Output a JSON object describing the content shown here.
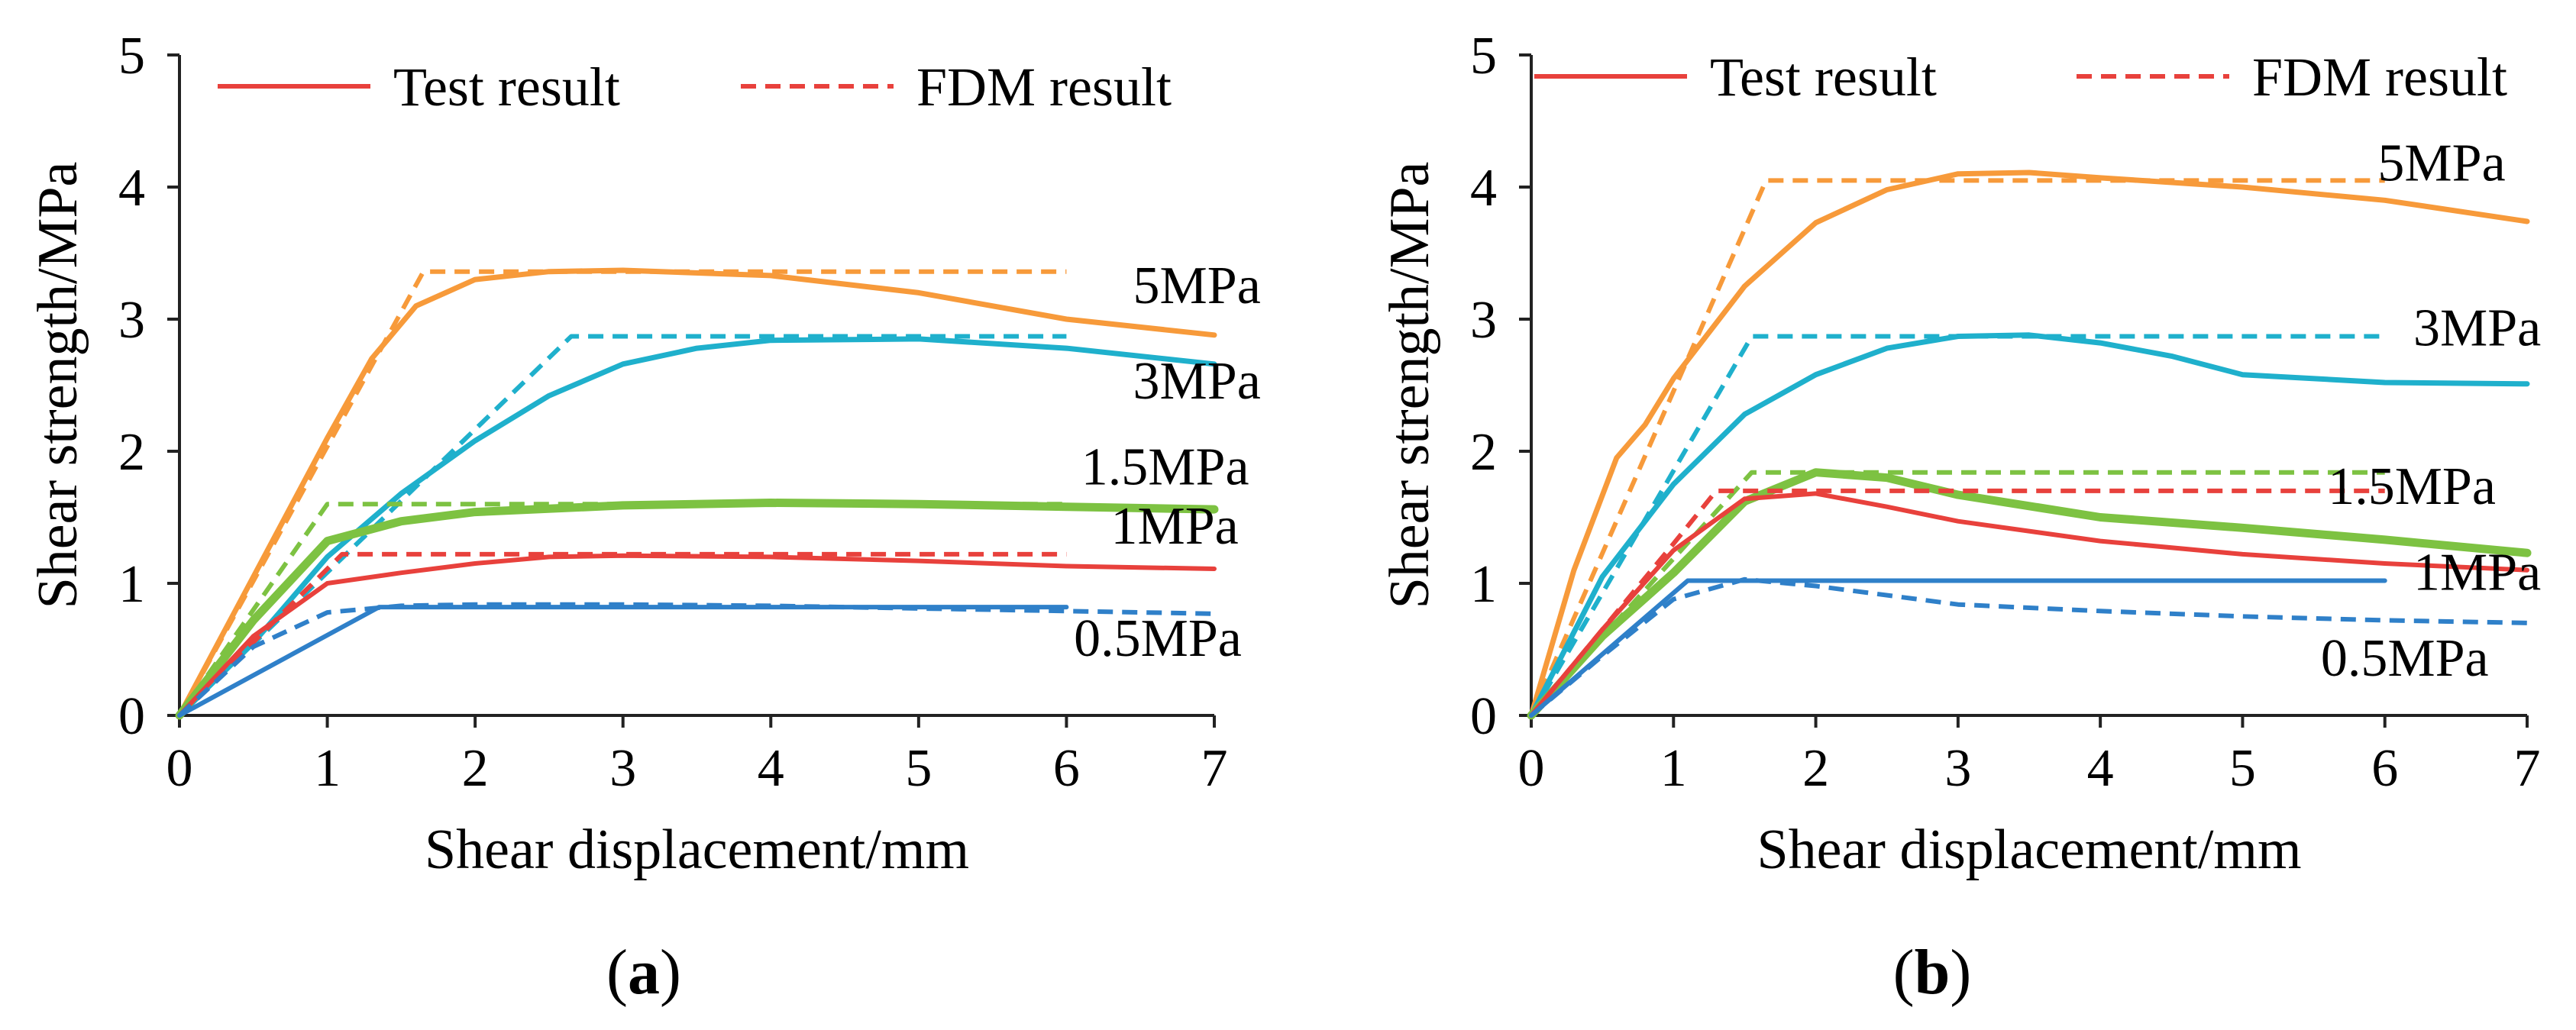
{
  "chart_data": [
    {
      "type": "line",
      "panel": "a",
      "caption_letter": "a",
      "xlabel": "Shear displacement/mm",
      "ylabel": "Shear strength/MPa",
      "xlim": [
        0,
        7
      ],
      "ylim": [
        0,
        5
      ],
      "xticks": [
        0,
        1,
        2,
        3,
        4,
        5,
        6,
        7
      ],
      "yticks": [
        0,
        1,
        2,
        3,
        4,
        5
      ],
      "grid": false,
      "legend": {
        "placement": "top",
        "entries": [
          {
            "label": "Test result",
            "style": "solid",
            "color": "#e8413c"
          },
          {
            "label": "FDM result",
            "style": "dashed",
            "color": "#e8413c"
          }
        ]
      },
      "annotations": [
        {
          "text": "5MPa",
          "x": 6.45,
          "y": 3.12
        },
        {
          "text": "3MPa",
          "x": 6.45,
          "y": 2.4
        },
        {
          "text": "1.5MPa",
          "x": 6.1,
          "y": 1.75
        },
        {
          "text": "1MPa",
          "x": 6.3,
          "y": 1.3
        },
        {
          "text": "0.5MPa",
          "x": 6.05,
          "y": 0.45
        }
      ],
      "series": [
        {
          "label": "5MPa",
          "style": "solid",
          "color": "#f79a3a",
          "width": 7,
          "x": [
            0,
            0.5,
            1.0,
            1.3,
            1.6,
            2.0,
            2.5,
            3.0,
            4.0,
            5.0,
            6.0,
            7.0
          ],
          "y": [
            0,
            1.05,
            2.1,
            2.7,
            3.1,
            3.3,
            3.36,
            3.37,
            3.33,
            3.2,
            3.0,
            2.88
          ]
        },
        {
          "label": "5MPa",
          "style": "dashed",
          "color": "#f79a3a",
          "width": 6,
          "x": [
            0,
            1.65,
            6.0
          ],
          "y": [
            0,
            3.36,
            3.36
          ]
        },
        {
          "label": "3MPa",
          "style": "solid",
          "color": "#1fb0cc",
          "width": 7,
          "x": [
            0,
            0.5,
            1.0,
            1.5,
            2.0,
            2.5,
            3.0,
            3.5,
            4.0,
            5.0,
            6.0,
            7.0
          ],
          "y": [
            0,
            0.55,
            1.2,
            1.68,
            2.08,
            2.42,
            2.66,
            2.78,
            2.84,
            2.85,
            2.78,
            2.66
          ]
        },
        {
          "label": "3MPa",
          "style": "dashed",
          "color": "#1fb0cc",
          "width": 6,
          "x": [
            0,
            2.65,
            6.0
          ],
          "y": [
            0,
            2.87,
            2.87
          ]
        },
        {
          "label": "1.5MPa",
          "style": "solid",
          "color": "#7dc242",
          "width": 11,
          "x": [
            0,
            0.5,
            1.0,
            1.5,
            2.0,
            3.0,
            4.0,
            5.0,
            6.0,
            7.0
          ],
          "y": [
            0,
            0.72,
            1.32,
            1.47,
            1.54,
            1.59,
            1.61,
            1.6,
            1.58,
            1.56
          ]
        },
        {
          "label": "1.5MPa",
          "style": "dashed",
          "color": "#7dc242",
          "width": 6,
          "x": [
            0,
            1.0,
            6.0
          ],
          "y": [
            0,
            1.6,
            1.6
          ]
        },
        {
          "label": "1MPa",
          "style": "solid",
          "color": "#e8413c",
          "width": 6,
          "x": [
            0,
            0.5,
            1.0,
            1.5,
            2.0,
            2.5,
            3.0,
            4.0,
            5.0,
            6.0,
            7.0
          ],
          "y": [
            0,
            0.6,
            1.0,
            1.08,
            1.15,
            1.2,
            1.21,
            1.2,
            1.17,
            1.13,
            1.11
          ]
        },
        {
          "label": "1MPa",
          "style": "dashed",
          "color": "#e8413c",
          "width": 6,
          "x": [
            0,
            1.1,
            6.0
          ],
          "y": [
            0,
            1.22,
            1.22
          ]
        },
        {
          "label": "0.5MPa",
          "style": "solid",
          "color": "#2f80c9",
          "width": 6,
          "x": [
            0,
            1.35,
            6.0
          ],
          "y": [
            0,
            0.82,
            0.82
          ]
        },
        {
          "label": "0.5MPa",
          "style": "dashed",
          "color": "#2f80c9",
          "width": 6,
          "x": [
            0,
            0.5,
            1.0,
            1.5,
            2.0,
            3.0,
            4.0,
            5.0,
            6.0,
            7.0
          ],
          "y": [
            0,
            0.52,
            0.78,
            0.83,
            0.84,
            0.84,
            0.83,
            0.81,
            0.79,
            0.77
          ]
        }
      ]
    },
    {
      "type": "line",
      "panel": "b",
      "caption_letter": "b",
      "xlabel": "Shear displacement/mm",
      "ylabel": "Shear strength/MPa",
      "xlim": [
        0,
        7
      ],
      "ylim": [
        0,
        5
      ],
      "xticks": [
        0,
        1,
        2,
        3,
        4,
        5,
        6,
        7
      ],
      "yticks": [
        0,
        1,
        2,
        3,
        4,
        5
      ],
      "grid": false,
      "legend": {
        "placement": "top",
        "entries": [
          {
            "label": "Test result",
            "style": "solid",
            "color": "#e8413c"
          },
          {
            "label": "FDM result",
            "style": "dashed",
            "color": "#e8413c"
          }
        ]
      },
      "annotations": [
        {
          "text": "5MPa",
          "x": 5.95,
          "y": 4.05
        },
        {
          "text": "3MPa",
          "x": 6.2,
          "y": 2.8
        },
        {
          "text": "1.5MPa",
          "x": 5.6,
          "y": 1.6
        },
        {
          "text": "1MPa",
          "x": 6.2,
          "y": 0.95
        },
        {
          "text": "0.5MPa",
          "x": 5.55,
          "y": 0.3
        }
      ],
      "series": [
        {
          "label": "5MPa",
          "style": "solid",
          "color": "#f79a3a",
          "width": 7,
          "x": [
            0,
            0.3,
            0.6,
            0.8,
            1.0,
            1.5,
            2.0,
            2.5,
            3.0,
            3.5,
            4.0,
            5.0,
            6.0,
            7.0
          ],
          "y": [
            0,
            1.1,
            1.95,
            2.2,
            2.55,
            3.25,
            3.73,
            3.98,
            4.1,
            4.11,
            4.07,
            4.0,
            3.9,
            3.74
          ]
        },
        {
          "label": "5MPa",
          "style": "dashed",
          "color": "#f79a3a",
          "width": 6,
          "x": [
            0,
            1.65,
            6.0
          ],
          "y": [
            0,
            4.05,
            4.05
          ]
        },
        {
          "label": "3MPa",
          "style": "solid",
          "color": "#1fb0cc",
          "width": 7,
          "x": [
            0,
            0.5,
            1.0,
            1.5,
            2.0,
            2.5,
            3.0,
            3.5,
            4.0,
            4.5,
            5.0,
            6.0,
            7.0
          ],
          "y": [
            0,
            1.05,
            1.75,
            2.28,
            2.58,
            2.78,
            2.87,
            2.88,
            2.82,
            2.72,
            2.58,
            2.52,
            2.51
          ]
        },
        {
          "label": "3MPa",
          "style": "dashed",
          "color": "#1fb0cc",
          "width": 6,
          "x": [
            0,
            1.55,
            6.0
          ],
          "y": [
            0,
            2.87,
            2.87
          ]
        },
        {
          "label": "1.5MPa",
          "style": "solid",
          "color": "#7dc242",
          "width": 11,
          "x": [
            0,
            0.5,
            1.0,
            1.5,
            2.0,
            2.5,
            3.0,
            4.0,
            5.0,
            6.0,
            7.0
          ],
          "y": [
            0,
            0.6,
            1.08,
            1.62,
            1.84,
            1.8,
            1.67,
            1.5,
            1.42,
            1.33,
            1.23
          ]
        },
        {
          "label": "1.5MPa",
          "style": "dashed",
          "color": "#7dc242",
          "width": 6,
          "x": [
            0,
            1.55,
            6.0
          ],
          "y": [
            0,
            1.84,
            1.84
          ]
        },
        {
          "label": "1MPa",
          "style": "solid",
          "color": "#e8413c",
          "width": 6,
          "x": [
            0,
            0.5,
            1.0,
            1.5,
            2.0,
            2.5,
            3.0,
            4.0,
            5.0,
            6.0,
            7.0
          ],
          "y": [
            0,
            0.65,
            1.25,
            1.64,
            1.68,
            1.58,
            1.47,
            1.32,
            1.22,
            1.15,
            1.1
          ]
        },
        {
          "label": "1MPa",
          "style": "dashed",
          "color": "#e8413c",
          "width": 6,
          "x": [
            0,
            0.5,
            1.0,
            1.3,
            6.0
          ],
          "y": [
            0,
            0.65,
            1.3,
            1.7,
            1.7
          ]
        },
        {
          "label": "0.5MPa",
          "style": "solid",
          "color": "#2f80c9",
          "width": 6,
          "x": [
            0,
            1.1,
            6.0
          ],
          "y": [
            0,
            1.02,
            1.02
          ]
        },
        {
          "label": "0.5MPa",
          "style": "dashed",
          "color": "#2f80c9",
          "width": 6,
          "x": [
            0,
            0.5,
            1.0,
            1.5,
            2.0,
            3.0,
            4.0,
            5.0,
            6.0,
            7.0
          ],
          "y": [
            0,
            0.45,
            0.88,
            1.03,
            0.98,
            0.84,
            0.79,
            0.75,
            0.72,
            0.7
          ]
        }
      ]
    }
  ]
}
